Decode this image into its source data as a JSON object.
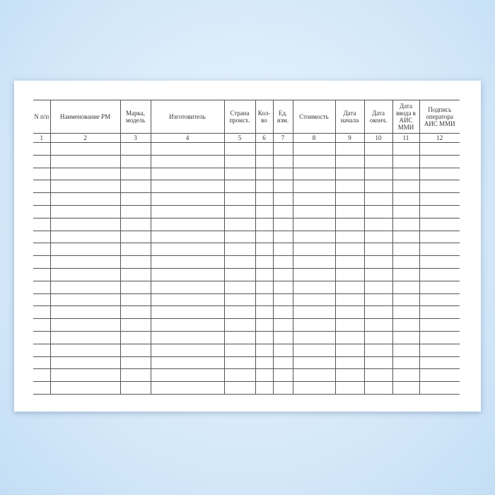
{
  "form": {
    "headers": [
      "N п/п",
      "Наименование РМ",
      "Марка, модель",
      "Изготовитель",
      "Страна происх.",
      "Кол-во",
      "Ед. изм.",
      "Стоимость",
      "Дата начала",
      "Дата оконч.",
      "Дата ввода в АИС ММИ",
      "Подпись оператора АИС ММИ"
    ],
    "column_numbers": [
      "1",
      "2",
      "3",
      "4",
      "5",
      "6",
      "7",
      "8",
      "9",
      "10",
      "11",
      "12"
    ],
    "empty_rows": 20
  }
}
